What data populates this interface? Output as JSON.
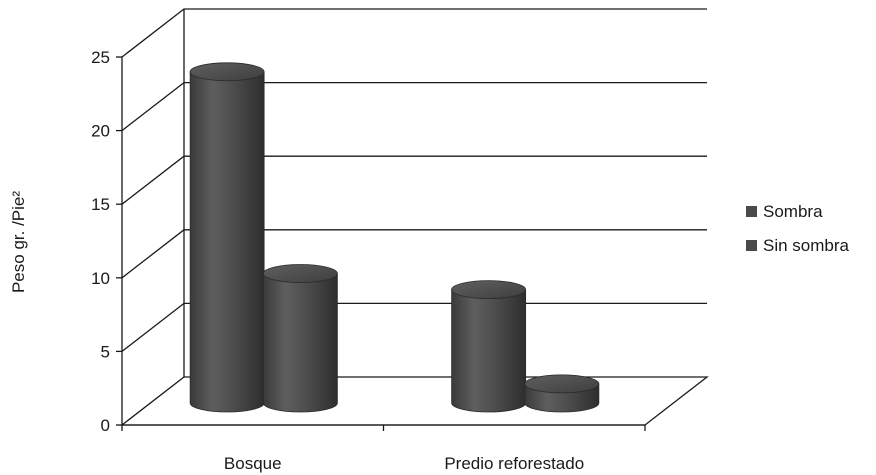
{
  "chart_data": {
    "type": "bar",
    "style": "3d-cylinder",
    "categories": [
      "Bosque",
      "Predio reforestado"
    ],
    "series": [
      {
        "name": "Sombra",
        "values": [
          22.5,
          7.7
        ],
        "color": "#4a4a4a"
      },
      {
        "name": "Sin sombra",
        "values": [
          8.8,
          1.3
        ],
        "color": "#4a4a4a"
      }
    ],
    "ylabel": "Peso  gr. /Pie²",
    "xlabel": "",
    "ylim": [
      0,
      25
    ],
    "yticks": [
      0,
      5,
      10,
      15,
      20,
      25
    ],
    "grid": true,
    "legend_position": "right"
  }
}
